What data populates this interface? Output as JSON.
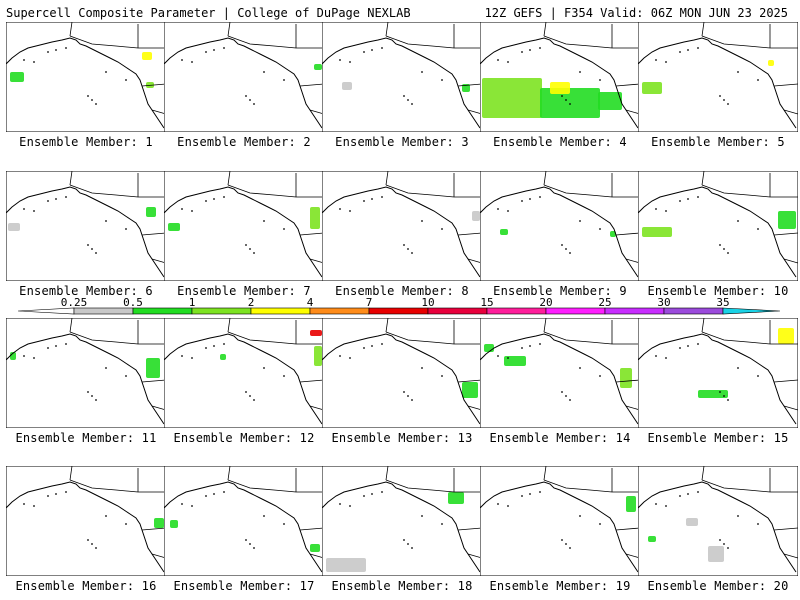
{
  "header": {
    "left": "Supercell Composite Parameter | College of DuPage NEXLAB",
    "right": "12Z GEFS | F354 Valid: 06Z MON JUN 23 2025"
  },
  "caption_prefix": "Ensemble Member:",
  "members": [
    {
      "id": "1",
      "label": "Ensemble Member: 1"
    },
    {
      "id": "2",
      "label": "Ensemble Member: 2"
    },
    {
      "id": "3",
      "label": "Ensemble Member: 3"
    },
    {
      "id": "4",
      "label": "Ensemble Member: 4"
    },
    {
      "id": "5",
      "label": "Ensemble Member: 5"
    },
    {
      "id": "6",
      "label": "Ensemble Member: 6"
    },
    {
      "id": "7",
      "label": "Ensemble Member: 7"
    },
    {
      "id": "8",
      "label": "Ensemble Member: 8"
    },
    {
      "id": "9",
      "label": "Ensemble Member: 9"
    },
    {
      "id": "10",
      "label": "Ensemble Member: 10"
    },
    {
      "id": "11",
      "label": "Ensemble Member: 11"
    },
    {
      "id": "12",
      "label": "Ensemble Member: 12"
    },
    {
      "id": "13",
      "label": "Ensemble Member: 13"
    },
    {
      "id": "14",
      "label": "Ensemble Member: 14"
    },
    {
      "id": "15",
      "label": "Ensemble Member: 15"
    },
    {
      "id": "16",
      "label": "Ensemble Member: 16"
    },
    {
      "id": "17",
      "label": "Ensemble Member: 17"
    },
    {
      "id": "18",
      "label": "Ensemble Member: 18"
    },
    {
      "id": "19",
      "label": "Ensemble Member: 19"
    },
    {
      "id": "20",
      "label": "Ensemble Member: 20"
    }
  ],
  "colorbar": {
    "labels": [
      "0.25",
      "0.5",
      "1",
      "2",
      "4",
      "7",
      "10",
      "15",
      "20",
      "25",
      "30",
      "35"
    ],
    "colors": [
      "#c8c8c8",
      "#22dd22",
      "#7de321",
      "#ffff00",
      "#ff8c1a",
      "#e80000",
      "#e8003c",
      "#ff1e9b",
      "#ff1eff",
      "#c82dff",
      "#9b4bdc",
      "#19d2e6"
    ]
  }
}
